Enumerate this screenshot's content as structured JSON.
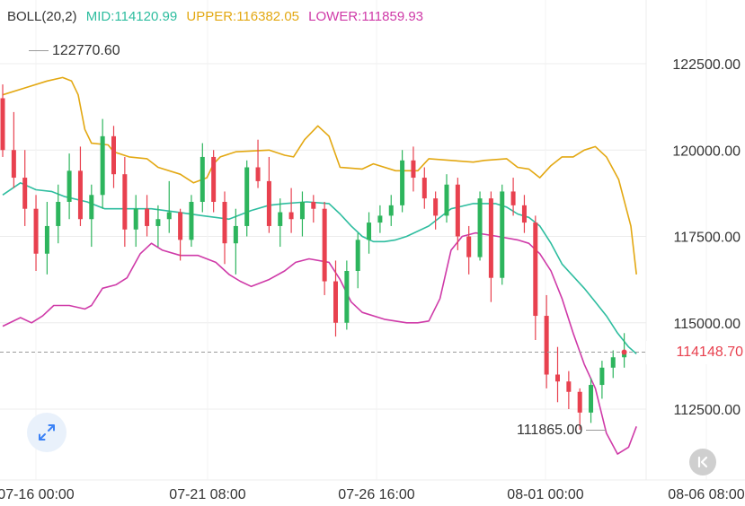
{
  "indicator": {
    "name": "BOLL(20,2)",
    "mid": "MID:114120.99",
    "upper": "UPPER:116382.05",
    "lower": "LOWER:111859.93"
  },
  "colors": {
    "mid": "#2ebd9f",
    "upper": "#e3a812",
    "lower": "#cf3aa8",
    "up": "#2db55d",
    "down": "#e8414f",
    "grid": "#ececec",
    "text": "#333333"
  },
  "labels": {
    "high": "122770.60",
    "low": "111865.00",
    "current_price": "114148.70"
  },
  "icons": {
    "expand": "expand-arrows-icon",
    "back": "chevron-left-icon"
  },
  "chart_data": {
    "type": "candlestick",
    "y_axis": {
      "ticks": [
        "122500.00",
        "120000.00",
        "117500.00",
        "115000.00",
        "112500.00"
      ],
      "position": "right"
    },
    "x_axis": {
      "ticks": [
        "07-16 00:00",
        "07-21 08:00",
        "07-26 16:00",
        "08-01 00:00",
        "08-06 08:00"
      ]
    },
    "current_price": 114148.7,
    "high_marker": 122770.6,
    "low_marker": 111865.0,
    "bollinger": {
      "upper": [
        [
          0.0,
          121600
        ],
        [
          2.0,
          121800
        ],
        [
          4.0,
          122000
        ],
        [
          5.4,
          122100
        ],
        [
          6.2,
          122000
        ],
        [
          6.8,
          121600
        ],
        [
          7.4,
          120600
        ],
        [
          8.0,
          120200
        ],
        [
          9.5,
          120150
        ],
        [
          10.0,
          119950
        ],
        [
          11.4,
          119800
        ],
        [
          13.0,
          119750
        ],
        [
          14.0,
          119500
        ],
        [
          16.0,
          119300
        ],
        [
          17.2,
          119050
        ],
        [
          18.4,
          119200
        ],
        [
          19.0,
          119600
        ],
        [
          19.6,
          119800
        ],
        [
          21.0,
          119950
        ],
        [
          24.0,
          120000
        ],
        [
          25.4,
          119850
        ],
        [
          26.2,
          119800
        ],
        [
          27.2,
          120300
        ],
        [
          28.4,
          120700
        ],
        [
          29.4,
          120400
        ],
        [
          30.4,
          119500
        ],
        [
          32.4,
          119450
        ],
        [
          33.4,
          119600
        ],
        [
          35.4,
          119400
        ],
        [
          37.4,
          119400
        ],
        [
          38.4,
          119750
        ],
        [
          40.4,
          119700
        ],
        [
          42.4,
          119650
        ],
        [
          43.4,
          119700
        ],
        [
          45.4,
          119750
        ],
        [
          46.4,
          119500
        ],
        [
          47.4,
          119450
        ],
        [
          48.4,
          119200
        ],
        [
          49.4,
          119550
        ],
        [
          50.4,
          119800
        ],
        [
          51.4,
          119800
        ],
        [
          52.4,
          120000
        ],
        [
          53.4,
          120100
        ],
        [
          54.4,
          119800
        ],
        [
          55.5,
          119150
        ],
        [
          56.6,
          117800
        ],
        [
          57.1,
          116400
        ]
      ],
      "mid": [
        [
          0.0,
          118700
        ],
        [
          1.6,
          119050
        ],
        [
          3.0,
          118850
        ],
        [
          4.4,
          118800
        ],
        [
          5.6,
          118650
        ],
        [
          7.6,
          118500
        ],
        [
          9.2,
          118300
        ],
        [
          11.6,
          118300
        ],
        [
          13.4,
          118300
        ],
        [
          15.8,
          118200
        ],
        [
          18.0,
          118100
        ],
        [
          20.4,
          118000
        ],
        [
          22.4,
          118250
        ],
        [
          24.0,
          118400
        ],
        [
          25.4,
          118450
        ],
        [
          27.4,
          118500
        ],
        [
          29.4,
          118450
        ],
        [
          30.4,
          118150
        ],
        [
          31.4,
          117800
        ],
        [
          32.4,
          117500
        ],
        [
          33.4,
          117350
        ],
        [
          34.4,
          117350
        ],
        [
          35.4,
          117400
        ],
        [
          36.4,
          117500
        ],
        [
          38.4,
          117800
        ],
        [
          39.4,
          118050
        ],
        [
          40.4,
          118300
        ],
        [
          42.4,
          118450
        ],
        [
          44.4,
          118450
        ],
        [
          45.4,
          118350
        ],
        [
          46.4,
          118150
        ],
        [
          47.4,
          118050
        ],
        [
          48.4,
          117800
        ],
        [
          49.4,
          117300
        ],
        [
          50.4,
          116700
        ],
        [
          52.4,
          116000
        ],
        [
          53.4,
          115600
        ],
        [
          54.4,
          115200
        ],
        [
          55.4,
          114700
        ],
        [
          56.4,
          114300
        ],
        [
          57.1,
          114100
        ]
      ],
      "lower": [
        [
          0.0,
          114900
        ],
        [
          1.6,
          115150
        ],
        [
          2.6,
          115000
        ],
        [
          3.6,
          115200
        ],
        [
          4.6,
          115500
        ],
        [
          6.0,
          115500
        ],
        [
          7.4,
          115400
        ],
        [
          8.0,
          115500
        ],
        [
          9.0,
          116000
        ],
        [
          10.2,
          116100
        ],
        [
          11.2,
          116300
        ],
        [
          12.4,
          117000
        ],
        [
          13.4,
          117300
        ],
        [
          14.4,
          117100
        ],
        [
          16.0,
          116950
        ],
        [
          17.6,
          116950
        ],
        [
          19.2,
          116750
        ],
        [
          20.4,
          116400
        ],
        [
          21.4,
          116200
        ],
        [
          22.4,
          116050
        ],
        [
          24.0,
          116250
        ],
        [
          25.4,
          116500
        ],
        [
          26.4,
          116750
        ],
        [
          27.6,
          116850
        ],
        [
          29.4,
          116750
        ],
        [
          30.4,
          116250
        ],
        [
          31.4,
          115600
        ],
        [
          32.4,
          115300
        ],
        [
          34.4,
          115100
        ],
        [
          36.4,
          115000
        ],
        [
          37.4,
          115000
        ],
        [
          38.4,
          115050
        ],
        [
          39.4,
          115700
        ],
        [
          40.4,
          117100
        ],
        [
          41.4,
          117500
        ],
        [
          42.6,
          117600
        ],
        [
          44.6,
          117500
        ],
        [
          46.4,
          117400
        ],
        [
          47.4,
          117300
        ],
        [
          48.4,
          117000
        ],
        [
          49.4,
          116500
        ],
        [
          50.4,
          115700
        ],
        [
          51.4,
          114700
        ],
        [
          52.4,
          113800
        ],
        [
          53.4,
          113100
        ],
        [
          54.4,
          111800
        ],
        [
          55.4,
          111200
        ],
        [
          56.4,
          111400
        ],
        [
          57.1,
          112000
        ]
      ]
    },
    "candles": [
      [
        121500,
        121900,
        119800,
        120000
      ],
      [
        120000,
        121100,
        118900,
        119200
      ],
      [
        119200,
        120000,
        117800,
        118300
      ],
      [
        118300,
        118700,
        116500,
        117000
      ],
      [
        117000,
        118500,
        116400,
        117800
      ],
      [
        117800,
        119000,
        117300,
        118500
      ],
      [
        118500,
        119900,
        118000,
        119400
      ],
      [
        119400,
        120100,
        117800,
        118000
      ],
      [
        118000,
        119000,
        117200,
        118700
      ],
      [
        118700,
        120900,
        118300,
        120400
      ],
      [
        120400,
        120700,
        118900,
        119300
      ],
      [
        119300,
        119800,
        117200,
        117700
      ],
      [
        117700,
        118700,
        117200,
        118300
      ],
      [
        118300,
        118700,
        117500,
        117800
      ],
      [
        117800,
        118400,
        117200,
        118000
      ],
      [
        118000,
        119100,
        117600,
        118200
      ],
      [
        118200,
        118300,
        116800,
        117400
      ],
      [
        117400,
        118700,
        117200,
        118500
      ],
      [
        118500,
        120200,
        118200,
        119800
      ],
      [
        119800,
        120000,
        118200,
        118500
      ],
      [
        118500,
        118800,
        116700,
        117300
      ],
      [
        117300,
        118300,
        116400,
        117800
      ],
      [
        117800,
        119700,
        117500,
        119500
      ],
      [
        119500,
        120300,
        118900,
        119100
      ],
      [
        119100,
        119800,
        117600,
        117800
      ],
      [
        117800,
        118600,
        117200,
        118200
      ],
      [
        118200,
        118900,
        117600,
        118000
      ],
      [
        118000,
        118800,
        117500,
        118500
      ],
      [
        118500,
        118700,
        117900,
        118300
      ],
      [
        118300,
        118500,
        115800,
        116200
      ],
      [
        116200,
        116800,
        114600,
        115000
      ],
      [
        115000,
        116800,
        114800,
        116500
      ],
      [
        116500,
        117600,
        116000,
        117400
      ],
      [
        117400,
        118200,
        117000,
        117900
      ],
      [
        117900,
        118400,
        117600,
        118100
      ],
      [
        118100,
        118700,
        117800,
        118400
      ],
      [
        118400,
        120000,
        118200,
        119700
      ],
      [
        119700,
        120100,
        118800,
        119200
      ],
      [
        119200,
        119500,
        118300,
        118600
      ],
      [
        118600,
        118800,
        117700,
        118100
      ],
      [
        118100,
        119300,
        117900,
        119000
      ],
      [
        119000,
        119200,
        117100,
        117500
      ],
      [
        117500,
        117800,
        116400,
        116900
      ],
      [
        116900,
        118800,
        116800,
        118600
      ],
      [
        118600,
        118800,
        115600,
        116300
      ],
      [
        116300,
        119000,
        116100,
        118800
      ],
      [
        118800,
        119200,
        118100,
        118400
      ],
      [
        118400,
        118700,
        117600,
        117900
      ],
      [
        117900,
        118100,
        114500,
        115200
      ],
      [
        115200,
        115800,
        113100,
        113500
      ],
      [
        113500,
        114300,
        112700,
        113300
      ],
      [
        113300,
        113600,
        112500,
        113000
      ],
      [
        113000,
        113100,
        111900,
        112400
      ],
      [
        112400,
        113400,
        112100,
        113200
      ],
      [
        113200,
        113900,
        112800,
        113700
      ],
      [
        113700,
        114200,
        113400,
        114000
      ],
      [
        114000,
        114700,
        113700,
        114150
      ]
    ]
  }
}
